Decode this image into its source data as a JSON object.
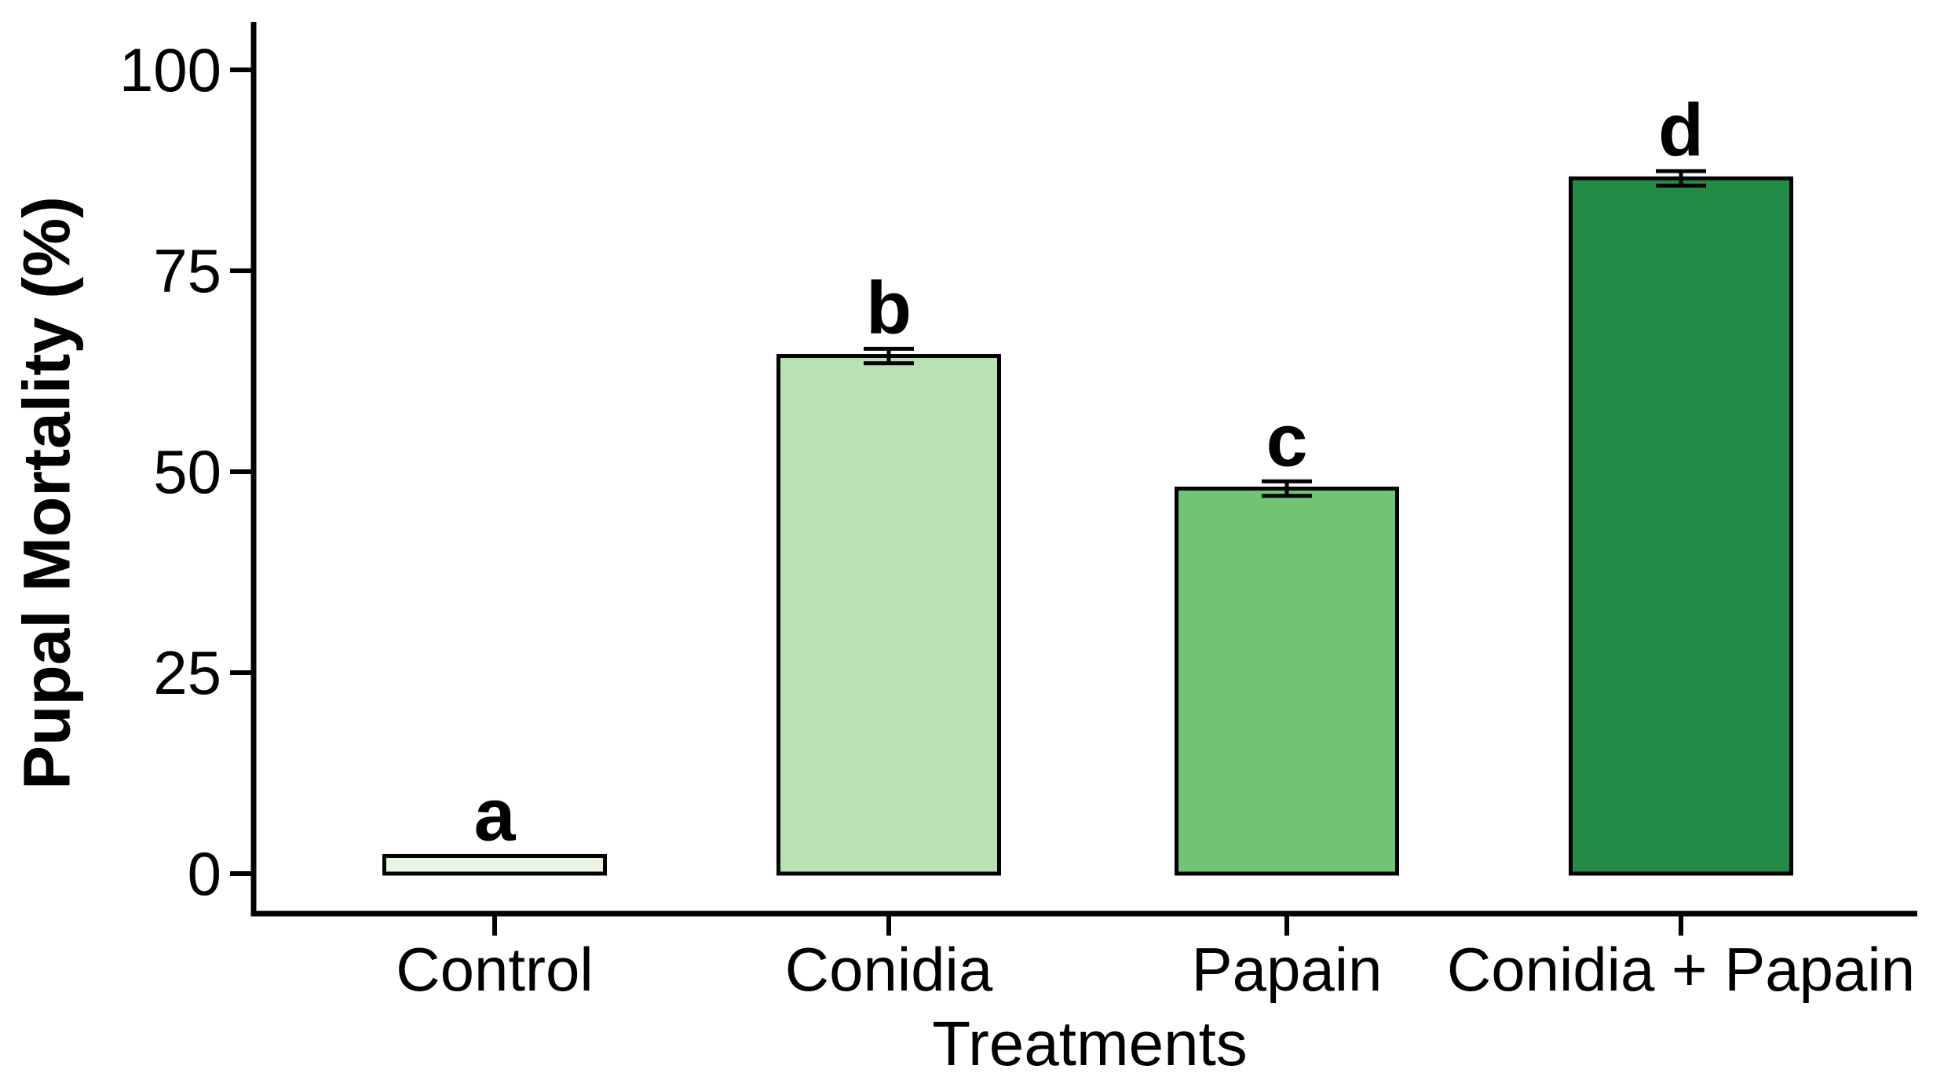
{
  "chart_data": {
    "type": "bar",
    "title": "",
    "xlabel": "Treatments",
    "ylabel": "Pupal Mortality (%)",
    "categories": [
      "Control",
      "Conidia",
      "Papain",
      "Conidia + Papain"
    ],
    "values": [
      2.2,
      64.4,
      47.9,
      86.5
    ],
    "errors": [
      0,
      0.9,
      0.9,
      0.9
    ],
    "sig_letters": [
      "a",
      "b",
      "c",
      "d"
    ],
    "bar_fill_colors": [
      "#eaf5e4",
      "#bae3b5",
      "#71c474",
      "#248b46"
    ],
    "bar_border_color": "#000000",
    "axis_color": "#000000",
    "text_color": "#000000",
    "background_color": "#ffffff",
    "yticks": [
      "0",
      "25",
      "50",
      "75",
      "100"
    ],
    "ytick_values": [
      0,
      25,
      50,
      75,
      100
    ],
    "ylim": [
      -5,
      106
    ],
    "grid": false,
    "legend": "none",
    "error_bar_style": "caps-above-and-below-bar-top"
  }
}
